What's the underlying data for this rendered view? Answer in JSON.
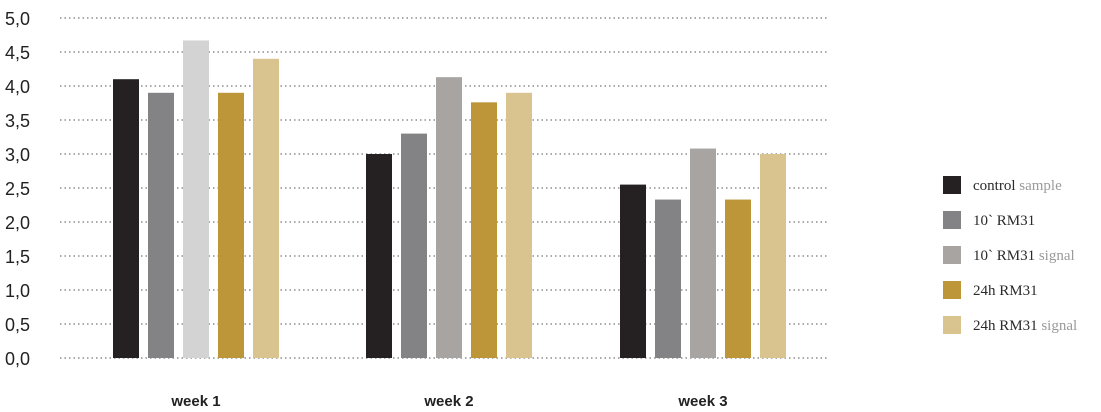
{
  "chart_data": {
    "type": "bar",
    "categories": [
      "week 1",
      "week 2",
      "week 3"
    ],
    "series": [
      {
        "name": "control sample",
        "values": [
          4.1,
          3.0,
          2.55
        ],
        "color": "#252122"
      },
      {
        "name": "10` RM31",
        "values": [
          3.9,
          3.3,
          2.33
        ],
        "color": "#838386"
      },
      {
        "name": "10` RM31 signal",
        "values": [
          4.67,
          4.13,
          3.08
        ],
        "color": "#a7a4a2"
      },
      {
        "name": "24h RM31",
        "values": [
          3.9,
          3.76,
          2.33
        ],
        "color": "#bd9639"
      },
      {
        "name": "24h RM31 signal",
        "values": [
          4.4,
          3.9,
          3.0
        ],
        "color": "#d9c48f"
      }
    ],
    "series_colors_week1_override": {
      "10` RM31 signal": "#d3d3d4"
    },
    "yticks": [
      "0,0",
      "0,5",
      "1,0",
      "1,5",
      "2,0",
      "2,5",
      "3,0",
      "3,5",
      "4,0",
      "4,5",
      "5,0"
    ],
    "ylim": [
      0,
      5
    ],
    "grid": "dotted horizontal",
    "legend_position": "right",
    "legend": [
      {
        "dark": "control",
        "light": " sample"
      },
      {
        "dark": "10` RM31",
        "light": ""
      },
      {
        "dark": "10` RM31",
        "light": " signal"
      },
      {
        "dark": "24h RM31",
        "light": ""
      },
      {
        "dark": "24h RM31",
        "light": " signal"
      }
    ],
    "title": "",
    "xlabel": "",
    "ylabel": ""
  }
}
